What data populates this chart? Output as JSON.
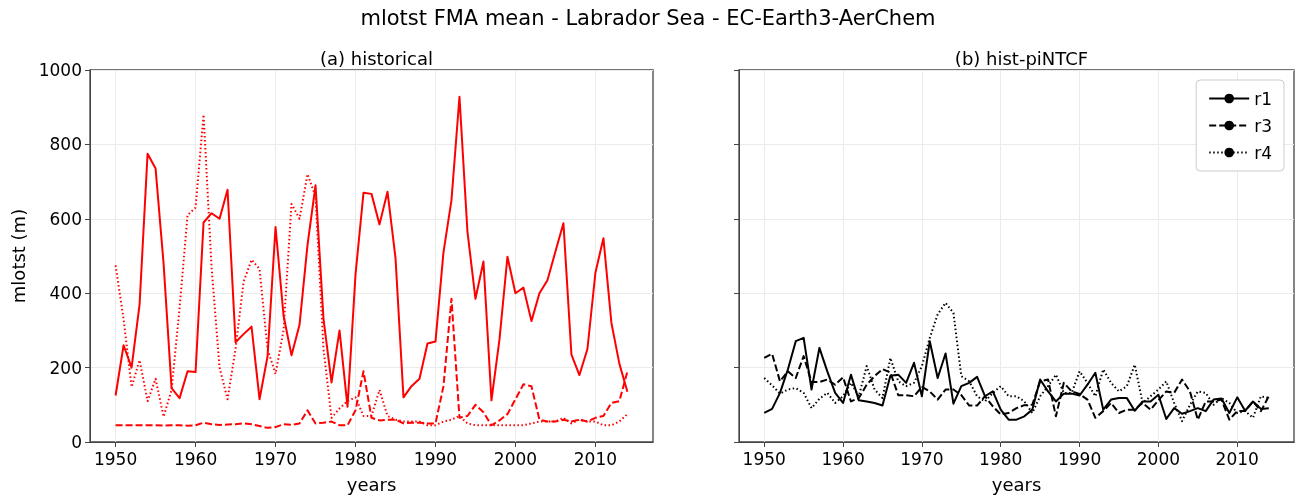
{
  "chart_data": [
    {
      "type": "line",
      "title": "mlotst FMA mean - Labrador Sea - EC-Earth3-AerChem",
      "subtitle": "(a) historical",
      "xlabel": "years",
      "ylabel": "mlotst (m)",
      "x": [
        1950,
        1951,
        1952,
        1953,
        1954,
        1955,
        1956,
        1957,
        1958,
        1959,
        1960,
        1961,
        1962,
        1963,
        1964,
        1965,
        1966,
        1967,
        1968,
        1969,
        1970,
        1971,
        1972,
        1973,
        1974,
        1975,
        1976,
        1977,
        1978,
        1979,
        1980,
        1981,
        1982,
        1983,
        1984,
        1985,
        1986,
        1987,
        1988,
        1989,
        1990,
        1991,
        1992,
        1993,
        1994,
        1995,
        1996,
        1997,
        1998,
        1999,
        2000,
        2001,
        2002,
        2003,
        2004,
        2005,
        2006,
        2007,
        2008,
        2009,
        2010,
        2011,
        2012,
        2013,
        2014
      ],
      "series": [
        {
          "color": "#ff0000",
          "line_style": "solid",
          "values": [
            125,
            260,
            200,
            370,
            775,
            735,
            480,
            145,
            118,
            190,
            188,
            590,
            615,
            600,
            678,
            268,
            290,
            310,
            115,
            230,
            578,
            340,
            233,
            315,
            530,
            690,
            330,
            160,
            300,
            95,
            450,
            670,
            667,
            585,
            673,
            495,
            120,
            150,
            170,
            265,
            270,
            510,
            650,
            928,
            565,
            385,
            485,
            112,
            275,
            498,
            400,
            415,
            325,
            400,
            435,
            512,
            588,
            235,
            180,
            250,
            455,
            548,
            320,
            210,
            135
          ]
        },
        {
          "color": "#ff0000",
          "line_style": "dashed",
          "values": [
            45,
            45,
            45,
            45,
            45,
            45,
            44,
            45,
            45,
            44,
            45,
            52,
            48,
            46,
            47,
            48,
            50,
            48,
            43,
            38,
            40,
            48,
            46,
            50,
            85,
            50,
            52,
            55,
            45,
            45,
            85,
            190,
            65,
            58,
            60,
            60,
            50,
            52,
            52,
            50,
            50,
            150,
            385,
            65,
            70,
            100,
            80,
            45,
            58,
            75,
            115,
            155,
            150,
            60,
            55,
            55,
            60,
            55,
            60,
            55,
            65,
            70,
            105,
            110,
            190
          ]
        },
        {
          "color": "#ff0000",
          "line_style": "dotted",
          "values": [
            475,
            330,
            148,
            220,
            110,
            170,
            68,
            140,
            360,
            610,
            630,
            880,
            470,
            200,
            115,
            250,
            430,
            490,
            465,
            250,
            183,
            300,
            640,
            600,
            720,
            660,
            250,
            65,
            90,
            110,
            120,
            70,
            70,
            140,
            70,
            60,
            55,
            55,
            55,
            45,
            45,
            55,
            60,
            70,
            50,
            45,
            45,
            45,
            45,
            45,
            45,
            45,
            50,
            55,
            55,
            55,
            65,
            50,
            60,
            55,
            55,
            45,
            45,
            55,
            75
          ]
        }
      ],
      "xlim": [
        1946.8,
        2017.2
      ],
      "xticks": [
        1950,
        1960,
        1970,
        1980,
        1990,
        2000,
        2010
      ],
      "ylim": [
        0,
        1000
      ],
      "yticks": [
        0,
        200,
        400,
        600,
        800,
        1000
      ],
      "grid": true,
      "marker": "none",
      "legend": false
    },
    {
      "type": "line",
      "subtitle": "(b) hist-piNTCF",
      "xlabel": "years",
      "x": [
        1950,
        1951,
        1952,
        1953,
        1954,
        1955,
        1956,
        1957,
        1958,
        1959,
        1960,
        1961,
        1962,
        1963,
        1964,
        1965,
        1966,
        1967,
        1968,
        1969,
        1970,
        1971,
        1972,
        1973,
        1974,
        1975,
        1976,
        1977,
        1978,
        1979,
        1980,
        1981,
        1982,
        1983,
        1984,
        1985,
        1986,
        1987,
        1988,
        1989,
        1990,
        1991,
        1992,
        1993,
        1994,
        1995,
        1996,
        1997,
        1998,
        1999,
        2000,
        2001,
        2002,
        2003,
        2004,
        2005,
        2006,
        2007,
        2008,
        2009,
        2010,
        2011,
        2012,
        2013,
        2014
      ],
      "series": [
        {
          "name": "r1",
          "color": "#000000",
          "line_style": "solid",
          "values": [
            78,
            89,
            132,
            195,
            271,
            280,
            141,
            253,
            190,
            132,
            105,
            181,
            112,
            109,
            105,
            98,
            178,
            181,
            159,
            213,
            123,
            271,
            172,
            238,
            103,
            150,
            159,
            175,
            123,
            136,
            87,
            60,
            60,
            69,
            87,
            168,
            136,
            109,
            130,
            130,
            125,
            154,
            186,
            87,
            114,
            118,
            118,
            84,
            109,
            109,
            127,
            62,
            91,
            76,
            83,
            91,
            83,
            114,
            117,
            78,
            120,
            84,
            109,
            89,
            91
          ]
        },
        {
          "name": "r3",
          "color": "#000000",
          "line_style": "dashed",
          "values": [
            226,
            237,
            163,
            190,
            172,
            231,
            161,
            161,
            168,
            154,
            174,
            109,
            118,
            154,
            177,
            196,
            187,
            126,
            126,
            123,
            148,
            136,
            114,
            141,
            141,
            126,
            98,
            98,
            123,
            96,
            74,
            78,
            91,
            99,
            100,
            163,
            168,
            69,
            159,
            136,
            129,
            114,
            65,
            83,
            105,
            78,
            87,
            87,
            105,
            87,
            112,
            136,
            132,
            168,
            136,
            60,
            109,
            109,
            114,
            60,
            83,
            83,
            109,
            83,
            123
          ]
        },
        {
          "name": "r4",
          "color": "#000000",
          "line_style": "dotted",
          "values": [
            172,
            152,
            130,
            141,
            145,
            132,
            91,
            116,
            132,
            105,
            123,
            159,
            123,
            204,
            141,
            118,
            226,
            163,
            150,
            159,
            204,
            280,
            343,
            374,
            347,
            177,
            163,
            123,
            109,
            132,
            150,
            123,
            123,
            109,
            78,
            123,
            150,
            181,
            132,
            132,
            190,
            159,
            123,
            195,
            159,
            136,
            150,
            208,
            105,
            123,
            141,
            163,
            105,
            56,
            100,
            136,
            132,
            100,
            118,
            105,
            78,
            83,
            65,
            123,
            118
          ]
        }
      ],
      "xlim": [
        1946.8,
        2017.2
      ],
      "xticks": [
        1950,
        1960,
        1970,
        1980,
        1990,
        2000,
        2010
      ],
      "ylim": [
        0,
        1000
      ],
      "yticks": [
        0,
        200,
        400,
        600,
        800,
        1000
      ],
      "tick_labels": "x",
      "grid": true,
      "marker": "none",
      "legend": "top right"
    }
  ]
}
